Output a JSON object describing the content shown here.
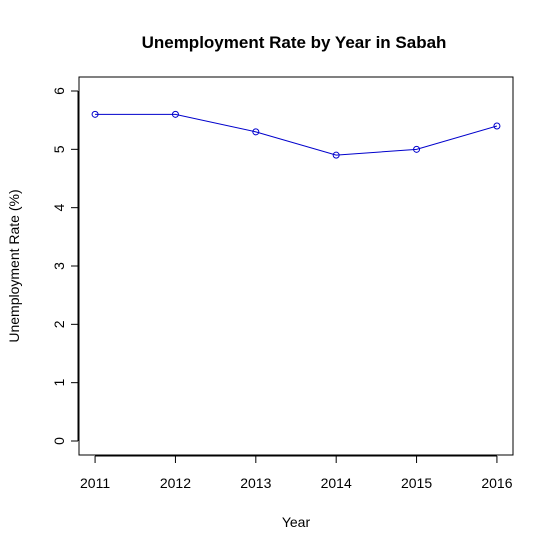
{
  "chart_data": {
    "type": "line",
    "title": "Unemployment Rate by Year in Sabah",
    "xlabel": "Year",
    "ylabel": "Unemployment Rate (%)",
    "x": [
      2011,
      2012,
      2013,
      2014,
      2015,
      2016
    ],
    "series": [
      {
        "values": [
          5.6,
          5.6,
          5.3,
          4.9,
          5.0,
          5.4
        ]
      }
    ],
    "x_ticks": [
      "2011",
      "2012",
      "2013",
      "2014",
      "2015",
      "2016"
    ],
    "y_ticks": [
      "0",
      "1",
      "2",
      "3",
      "4",
      "5",
      "6"
    ],
    "xlim": [
      2010.8,
      2016.2
    ],
    "ylim": [
      -0.24,
      6.24
    ],
    "line_color": "#0000cc",
    "marker": "open-circle",
    "grid": false,
    "legend": "none"
  }
}
